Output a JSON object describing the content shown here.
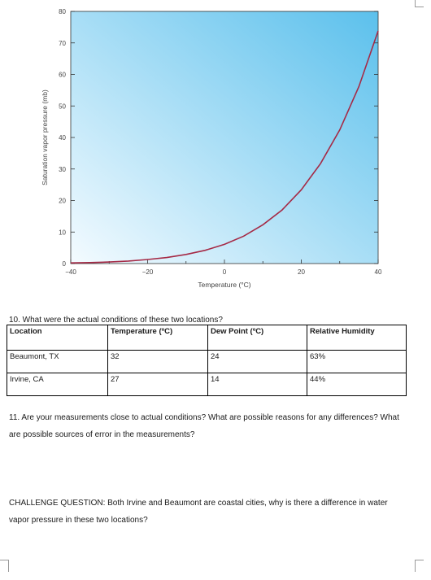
{
  "chart_data": {
    "type": "line",
    "title": "",
    "xlabel": "Temperature (°C)",
    "ylabel": "Saturation vapor pressure (mb)",
    "xlim": [
      -40,
      40
    ],
    "ylim": [
      0,
      80
    ],
    "x_ticks": [
      "−40",
      "−20",
      "0",
      "20",
      "40"
    ],
    "y_ticks": [
      "0",
      "10",
      "20",
      "30",
      "40",
      "50",
      "60",
      "70",
      "80"
    ],
    "grid": false,
    "colors": {
      "curve": "#a52a46",
      "background_light": "#f4fbff",
      "background_dark": "#5bc0ec"
    },
    "series": [
      {
        "x": [
          -40,
          -35,
          -30,
          -25,
          -20,
          -15,
          -10,
          -5,
          0,
          5,
          10,
          15,
          20,
          25,
          30,
          35,
          40
        ],
        "values": [
          0.2,
          0.3,
          0.5,
          0.8,
          1.3,
          1.9,
          2.9,
          4.2,
          6.1,
          8.7,
          12.3,
          17.0,
          23.4,
          31.7,
          42.4,
          56.2,
          73.8
        ]
      }
    ]
  },
  "question10": "10. What were the actual conditions of these two locations?",
  "table": {
    "headers": [
      "Location",
      "Temperature (ºC)",
      "Dew Point (ºC)",
      "Relative Humidity"
    ],
    "rows": [
      [
        "Beaumont, TX",
        "32",
        "24",
        "63%"
      ],
      [
        "Irvine, CA",
        "27",
        "14",
        "44%"
      ]
    ]
  },
  "question11": "11. Are your measurements close to actual conditions? What are possible reasons for any differences? What are possible sources of error in the measurements?",
  "challenge": "CHALLENGE QUESTION: Both Irvine and Beaumont are coastal cities, why is there a difference in water vapor pressure in these two locations?"
}
